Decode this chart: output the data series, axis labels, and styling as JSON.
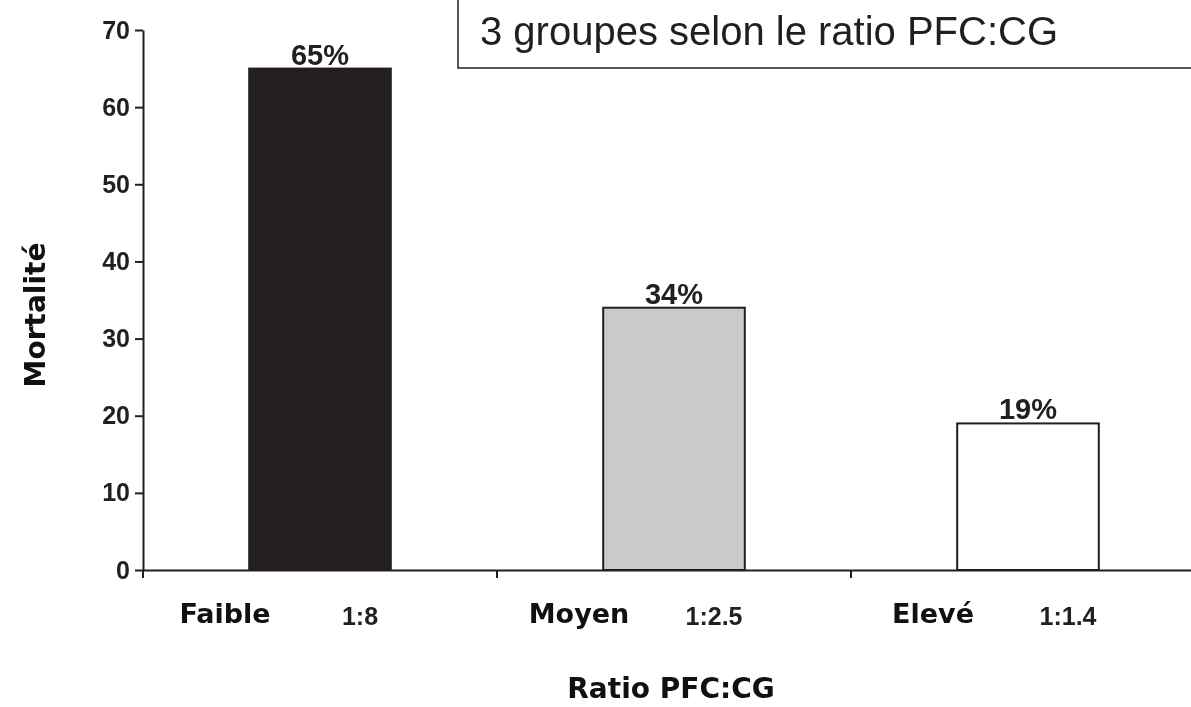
{
  "chart_data": {
    "type": "bar",
    "title": "3 groupes selon le ratio PFC:CG",
    "xlabel": "Ratio PFC:CG",
    "ylabel": "Mortalité",
    "categories": [
      "Faible",
      "Moyen",
      "Elevé"
    ],
    "values": [
      65,
      34,
      19
    ],
    "colors": [
      "#231f20",
      "#c9cacc",
      "#ffffff"
    ],
    "value_labels": [
      "65%",
      "34%",
      "19%"
    ],
    "ylim": [
      0,
      70
    ],
    "yticks": [
      0,
      10,
      20,
      30,
      40,
      50,
      60,
      70
    ],
    "annotations": [
      "1:8",
      "1:2.5",
      "1:1.4"
    ],
    "grid": false
  }
}
